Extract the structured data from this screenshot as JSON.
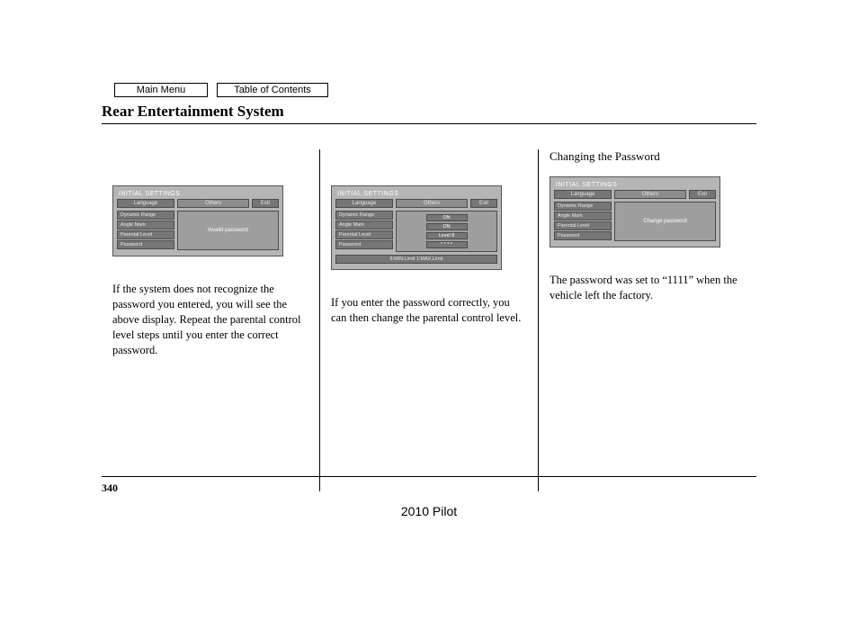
{
  "nav": {
    "main": "Main Menu",
    "toc": "Table of Contents"
  },
  "section_title": "Rear Entertainment System",
  "page_number": "340",
  "footer_model": "2010 Pilot",
  "screens": {
    "common": {
      "title": "INITIAL SETTINGS",
      "tabs": {
        "lang": "Language",
        "others": "Others",
        "exit": "Exit"
      },
      "menu": [
        "Dynamic Range",
        "Angle Mark",
        "Parental Level",
        "Password"
      ]
    },
    "s1": {
      "pane_message": "Invalid password"
    },
    "s2": {
      "values": [
        "ON",
        "ON",
        "Level 8",
        "* * * *"
      ],
      "bottom_bar": "8:MIN.Limit   1:MAX.Limit"
    },
    "s3": {
      "pane_message": "Change password"
    }
  },
  "columns": {
    "c1": {
      "heading": "",
      "caption": "If the system does not recognize the password you entered, you will see the above display. Repeat the parental control level steps until you enter the correct password."
    },
    "c2": {
      "heading": "",
      "caption": "If you enter the password correctly, you can then change the parental control level."
    },
    "c3": {
      "heading": "Changing the Password",
      "caption": "The password was set to “1111” when the vehicle left the factory."
    }
  },
  "colors": {
    "screen_bg": "#b5b5b5",
    "panel_bg": "#9e9e9e",
    "button_bg": "#767676",
    "border": "#4b4b4b",
    "text_light": "#ffffff"
  }
}
